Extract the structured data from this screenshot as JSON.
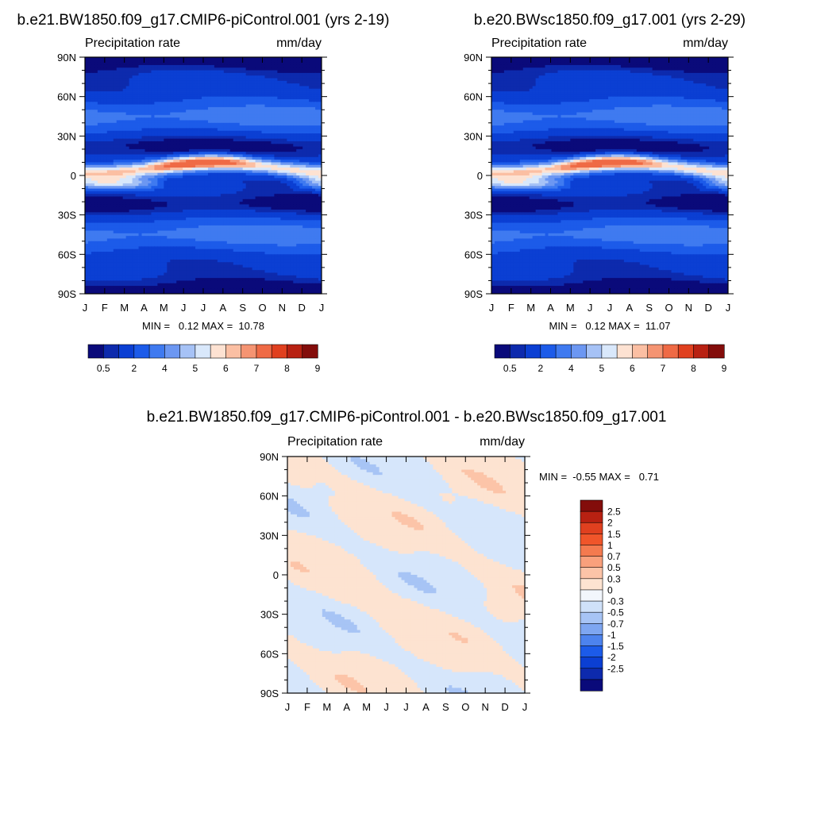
{
  "chart_data": [
    {
      "type": "heatmap",
      "title": "b.e21.BW1850.f09_g17.CMIP6-piControl.001 (yrs 2-19)",
      "left_label": "Precipitation rate",
      "right_label": "mm/day",
      "x_ticks": [
        "J",
        "F",
        "M",
        "A",
        "M",
        "J",
        "J",
        "A",
        "S",
        "O",
        "N",
        "D",
        "J"
      ],
      "y_ticks": [
        "90N",
        "60N",
        "30N",
        "0",
        "30S",
        "60S",
        "90S"
      ],
      "stats": "MIN =   0.12 MAX =  10.78",
      "colorbar": {
        "labels": [
          "0.5",
          "2",
          "4",
          "5",
          "6",
          "7",
          "8",
          "9"
        ],
        "levels": [
          0.5,
          1,
          2,
          3,
          4,
          5,
          6,
          7,
          8,
          9,
          10,
          12,
          14
        ],
        "colors": [
          "#0a0a7a",
          "#0d2aad",
          "#0b3fd3",
          "#1c5be9",
          "#3f7af0",
          "#6c97f2",
          "#a6c2f6",
          "#d9e8fb",
          "#fde2d2",
          "#fbbfa3",
          "#f59472",
          "#ef6a45",
          "#e0401f",
          "#b82112",
          "#830d0b"
        ]
      }
    },
    {
      "type": "heatmap",
      "title": "b.e20.BWsc1850.f09_g17.001 (yrs 2-29)",
      "left_label": "Precipitation rate",
      "right_label": "mm/day",
      "x_ticks": [
        "J",
        "F",
        "M",
        "A",
        "M",
        "J",
        "J",
        "A",
        "S",
        "O",
        "N",
        "D",
        "J"
      ],
      "y_ticks": [
        "90N",
        "60N",
        "30N",
        "0",
        "30S",
        "60S",
        "90S"
      ],
      "stats": "MIN =   0.12 MAX =  11.07",
      "colorbar": {
        "labels": [
          "0.5",
          "2",
          "4",
          "5",
          "6",
          "7",
          "8",
          "9"
        ],
        "levels": [
          0.5,
          1,
          2,
          3,
          4,
          5,
          6,
          7,
          8,
          9,
          10,
          12,
          14
        ],
        "colors": [
          "#0a0a7a",
          "#0d2aad",
          "#0b3fd3",
          "#1c5be9",
          "#3f7af0",
          "#6c97f2",
          "#a6c2f6",
          "#d9e8fb",
          "#fde2d2",
          "#fbbfa3",
          "#f59472",
          "#ef6a45",
          "#e0401f",
          "#b82112",
          "#830d0b"
        ]
      }
    },
    {
      "type": "heatmap",
      "title": "b.e21.BW1850.f09_g17.CMIP6-piControl.001 - b.e20.BWsc1850.f09_g17.001",
      "left_label": "Precipitation rate",
      "right_label": "mm/day",
      "x_ticks": [
        "J",
        "F",
        "M",
        "A",
        "M",
        "J",
        "J",
        "A",
        "S",
        "O",
        "N",
        "D",
        "J"
      ],
      "y_ticks": [
        "90N",
        "60N",
        "30N",
        "0",
        "30S",
        "60S",
        "90S"
      ],
      "stats": "MIN =  -0.55 MAX =   0.71",
      "colorbar": {
        "labels": [
          "2.5",
          "2",
          "1.5",
          "1",
          "0.7",
          "0.5",
          "0.3",
          "0",
          "-0.3",
          "-0.5",
          "-0.7",
          "-1",
          "-1.5",
          "-2",
          "-2.5"
        ],
        "colors": [
          "#830d0b",
          "#b82112",
          "#e0401f",
          "#f0552a",
          "#f47a4f",
          "#f9a07c",
          "#fcc4a8",
          "#fde3d1",
          "#f2f6fc",
          "#cfe1f9",
          "#a7c4f5",
          "#7ea6f1",
          "#4d83ee",
          "#1c5be9",
          "#0b3fd3",
          "#0d2aad",
          "#0a0a7a"
        ]
      }
    }
  ]
}
